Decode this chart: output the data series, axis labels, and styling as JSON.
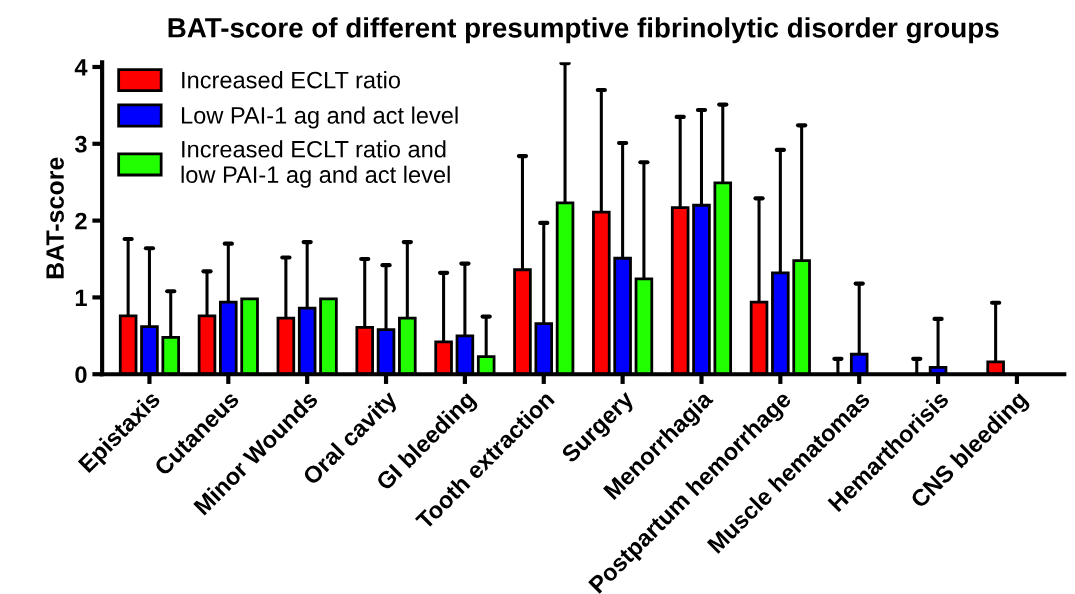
{
  "chart_data": {
    "type": "bar",
    "title": "BAT-score of different presumptive fibrinolytic disorder groups",
    "ylabel": "BAT-score",
    "categories": [
      "Epistaxis",
      "Cutaneus",
      "Minor Wounds",
      "Oral cavity",
      "GI bleeding",
      "Tooth extraction",
      "Surgery",
      "Menorrhagia",
      "Postpartum hemorrhage",
      "Muscle hematomas",
      "Hemarthorisis",
      "CNS bleeding"
    ],
    "series": [
      {
        "name": "Increased ECLT ratio",
        "color": "#ff0000",
        "values": [
          0.76,
          0.76,
          0.73,
          0.61,
          0.42,
          1.36,
          2.11,
          2.17,
          0.94,
          0,
          0,
          0.16
        ],
        "errors": [
          [
            0.76,
            1.76
          ],
          [
            0.76,
            1.34
          ],
          [
            0.73,
            1.52
          ],
          [
            0.61,
            1.5
          ],
          [
            0.42,
            1.32
          ],
          [
            1.36,
            2.84
          ],
          [
            2.11,
            3.7
          ],
          [
            2.17,
            3.35
          ],
          [
            0.94,
            2.29
          ],
          [
            0,
            0.2
          ],
          [
            0,
            0.2
          ],
          [
            0.16,
            0.93
          ]
        ]
      },
      {
        "name": "Low PAI-1 ag and act level",
        "color": "#0000ff",
        "values": [
          0.62,
          0.94,
          0.86,
          0.58,
          0.5,
          0.66,
          1.51,
          2.2,
          1.32,
          0.26,
          0.09,
          null
        ],
        "errors": [
          [
            0.62,
            1.64
          ],
          [
            0.94,
            1.7
          ],
          [
            0.86,
            1.72
          ],
          [
            0.58,
            1.42
          ],
          [
            0.5,
            1.44
          ],
          [
            0.66,
            1.97
          ],
          [
            1.51,
            3.01
          ],
          [
            2.2,
            3.44
          ],
          [
            1.32,
            2.92
          ],
          [
            0.26,
            1.18
          ],
          [
            0.09,
            0.72
          ],
          null
        ]
      },
      {
        "name": "Increased ECLT ratio and\nlow PAI-1 ag and act level",
        "color": "#22ff00",
        "values": [
          0.48,
          0.98,
          0.98,
          0.73,
          0.23,
          2.23,
          1.24,
          2.49,
          1.48,
          null,
          null,
          null
        ],
        "errors": [
          [
            0.48,
            1.08
          ],
          null,
          null,
          [
            0.73,
            1.72
          ],
          [
            0.23,
            0.75
          ],
          [
            2.23,
            4.05
          ],
          [
            1.24,
            2.76
          ],
          [
            2.49,
            3.51
          ],
          [
            1.48,
            3.24
          ],
          null,
          null,
          null
        ]
      }
    ],
    "ylim": [
      0,
      4.06
    ],
    "yticks": [
      0,
      1,
      2,
      3,
      4
    ],
    "grid": false,
    "legend": "top left"
  }
}
